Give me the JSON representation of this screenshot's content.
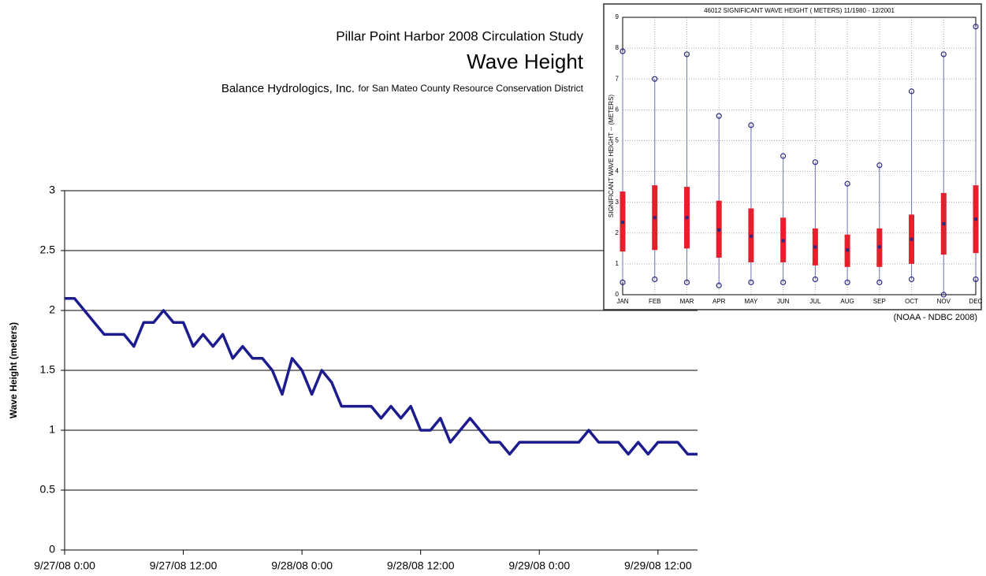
{
  "chart_data": [
    {
      "type": "line",
      "header": "Pillar Point Harbor 2008 Circulation Study",
      "title": "Wave Height",
      "subtitle": "Balance Hydrologics, Inc.",
      "subtitle_note": "for San Mateo County Resource Conservation District",
      "y_label": "Wave Height (meters)",
      "x": [
        0,
        1,
        4,
        6,
        7,
        8,
        9,
        10,
        11,
        12,
        13,
        14,
        15,
        16,
        17,
        18,
        19,
        20,
        21,
        22,
        23,
        24,
        25,
        26,
        27,
        28,
        31,
        32,
        33,
        34,
        35,
        36,
        37,
        38,
        39,
        41,
        43,
        44,
        45,
        46,
        52,
        53,
        54,
        56,
        57,
        58,
        59,
        60,
        62,
        63,
        64
      ],
      "values": [
        2.1,
        2.1,
        1.8,
        1.8,
        1.7,
        1.9,
        1.9,
        2.0,
        1.9,
        1.9,
        1.7,
        1.8,
        1.7,
        1.8,
        1.6,
        1.7,
        1.6,
        1.6,
        1.5,
        1.3,
        1.6,
        1.5,
        1.3,
        1.5,
        1.4,
        1.2,
        1.2,
        1.1,
        1.2,
        1.1,
        1.2,
        1.0,
        1.0,
        1.1,
        0.9,
        1.1,
        0.9,
        0.9,
        0.8,
        0.9,
        0.9,
        1.0,
        0.9,
        0.9,
        0.8,
        0.9,
        0.8,
        0.9,
        0.9,
        0.8,
        0.8
      ],
      "color": "#1c1c8e",
      "xlim": [
        0,
        64
      ],
      "xticks": [
        {
          "value": 0,
          "label": "9/27/08 0:00"
        },
        {
          "value": 12,
          "label": "9/27/08 12:00"
        },
        {
          "value": 24,
          "label": "9/28/08 0:00"
        },
        {
          "value": 36,
          "label": "9/28/08 12:00"
        },
        {
          "value": 48,
          "label": "9/29/08 0:00"
        },
        {
          "value": 60,
          "label": "9/29/08 12:00"
        }
      ],
      "ylim": [
        0,
        3
      ],
      "yticks": [
        0,
        0.5,
        1,
        1.5,
        2,
        2.5,
        3
      ],
      "grid": true
    },
    {
      "type": "box",
      "title": "46012  SIGNIFICANT WAVE HEIGHT ( METERS) 11/1980 - 12/2001",
      "y_label": "SIGNIFICANT WAVE HEIGHT -- (METERS)",
      "caption": "(NOAA - NDBC 2008)",
      "categories": [
        "JAN",
        "FEB",
        "MAR",
        "APR",
        "MAY",
        "JUN",
        "JUL",
        "AUG",
        "SEP",
        "OCT",
        "NOV",
        "DEC"
      ],
      "min": [
        0.4,
        0.5,
        0.4,
        0.3,
        0.4,
        0.4,
        0.5,
        0.4,
        0.4,
        0.5,
        0.0,
        0.5
      ],
      "q1": [
        1.4,
        1.45,
        1.5,
        1.2,
        1.05,
        1.05,
        0.95,
        0.9,
        0.9,
        1.0,
        1.3,
        1.35
      ],
      "median": [
        2.35,
        2.5,
        2.5,
        2.1,
        1.9,
        1.75,
        1.55,
        1.45,
        1.55,
        1.8,
        2.3,
        2.45
      ],
      "q3": [
        3.35,
        3.55,
        3.5,
        3.05,
        2.8,
        2.5,
        2.15,
        1.95,
        2.15,
        2.6,
        3.3,
        3.55
      ],
      "max": [
        7.9,
        7.0,
        7.8,
        5.8,
        5.5,
        4.5,
        4.3,
        3.6,
        4.2,
        6.6,
        7.8,
        8.7
      ],
      "box_color": "#e3202b",
      "whisker_color": "#7076b4",
      "ylim": [
        0,
        9
      ],
      "yticks": [
        0,
        1,
        2,
        3,
        4,
        5,
        6,
        7,
        8,
        9
      ],
      "grid": true
    }
  ]
}
